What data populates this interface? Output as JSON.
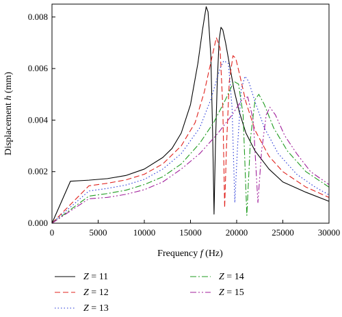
{
  "chart_data": {
    "type": "line",
    "xlabel": {
      "pre": "Frequency ",
      "var": "f",
      "post": " (Hz)"
    },
    "ylabel": {
      "pre": "Displacement ",
      "var": "h",
      "post": " (mm)"
    },
    "xlim": [
      0,
      30000
    ],
    "ylim": [
      0,
      0.0085
    ],
    "x_ticks": [
      "0",
      "5000",
      "10000",
      "15000",
      "20000",
      "25000",
      "30000"
    ],
    "y_ticks": [
      "0.000",
      "0.002",
      "0.004",
      "0.006",
      "0.008"
    ],
    "grid": false,
    "legend_position": "bottom",
    "series": [
      {
        "name": "Z = 11",
        "var": "Z",
        "rest": " = 11",
        "color": "#000000",
        "dash": "",
        "points": [
          [
            0,
            0
          ],
          [
            2000,
            0.00163
          ],
          [
            4000,
            0.00167
          ],
          [
            6000,
            0.00173
          ],
          [
            8000,
            0.00185
          ],
          [
            10000,
            0.0021
          ],
          [
            12000,
            0.00255
          ],
          [
            13000,
            0.0029
          ],
          [
            14000,
            0.0035
          ],
          [
            15000,
            0.0046
          ],
          [
            15800,
            0.0062
          ],
          [
            16300,
            0.0075
          ],
          [
            16700,
            0.0084
          ],
          [
            16900,
            0.0082
          ],
          [
            17200,
            0.0065
          ],
          [
            17400,
            0.0035
          ],
          [
            17550,
            0.00035
          ],
          [
            17700,
            0.003
          ],
          [
            17900,
            0.0055
          ],
          [
            18100,
            0.0071
          ],
          [
            18300,
            0.0076
          ],
          [
            18500,
            0.0075
          ],
          [
            18800,
            0.007
          ],
          [
            19200,
            0.0062
          ],
          [
            19700,
            0.0052
          ],
          [
            20300,
            0.0043
          ],
          [
            21000,
            0.0035
          ],
          [
            22000,
            0.0028
          ],
          [
            23500,
            0.0021
          ],
          [
            25000,
            0.0016
          ],
          [
            27500,
            0.0012
          ],
          [
            30000,
            0.00085
          ]
        ]
      },
      {
        "name": "Z = 12",
        "var": "Z",
        "rest": " = 12",
        "color": "#e0201b",
        "dash": "8,4",
        "points": [
          [
            0,
            0
          ],
          [
            4000,
            0.00145
          ],
          [
            6000,
            0.00155
          ],
          [
            8000,
            0.00168
          ],
          [
            10000,
            0.0019
          ],
          [
            12000,
            0.0023
          ],
          [
            14000,
            0.003
          ],
          [
            15500,
            0.0039
          ],
          [
            16500,
            0.0051
          ],
          [
            17300,
            0.0064
          ],
          [
            17800,
            0.0072
          ],
          [
            18200,
            0.0068
          ],
          [
            18500,
            0.0045
          ],
          [
            18700,
            0.0006
          ],
          [
            18900,
            0.003
          ],
          [
            19200,
            0.0055
          ],
          [
            19600,
            0.0065
          ],
          [
            19900,
            0.0064
          ],
          [
            20300,
            0.0058
          ],
          [
            21000,
            0.0047
          ],
          [
            22000,
            0.0036
          ],
          [
            23500,
            0.0026
          ],
          [
            25000,
            0.002
          ],
          [
            27500,
            0.0014
          ],
          [
            30000,
            0.001
          ]
        ]
      },
      {
        "name": "Z = 13",
        "var": "Z",
        "rest": " = 13",
        "color": "#1c2fd6",
        "dash": "1.5,3",
        "points": [
          [
            0,
            0
          ],
          [
            4000,
            0.00125
          ],
          [
            6000,
            0.00135
          ],
          [
            8000,
            0.00148
          ],
          [
            10000,
            0.0017
          ],
          [
            12000,
            0.0021
          ],
          [
            14000,
            0.0027
          ],
          [
            16000,
            0.0037
          ],
          [
            17200,
            0.0048
          ],
          [
            18200,
            0.006
          ],
          [
            18600,
            0.0063
          ],
          [
            19100,
            0.0062
          ],
          [
            19500,
            0.0045
          ],
          [
            19800,
            0.0008
          ],
          [
            20100,
            0.003
          ],
          [
            20500,
            0.0052
          ],
          [
            20900,
            0.0057
          ],
          [
            21300,
            0.0055
          ],
          [
            22000,
            0.0047
          ],
          [
            23000,
            0.0037
          ],
          [
            24500,
            0.0027
          ],
          [
            26500,
            0.0019
          ],
          [
            28500,
            0.0014
          ],
          [
            30000,
            0.0011
          ]
        ]
      },
      {
        "name": "Z = 14",
        "var": "Z",
        "rest": " = 14",
        "color": "#1f9b1f",
        "dash": "9,3,2,3",
        "points": [
          [
            0,
            0
          ],
          [
            4000,
            0.00105
          ],
          [
            6000,
            0.00115
          ],
          [
            8000,
            0.00128
          ],
          [
            10000,
            0.0015
          ],
          [
            12000,
            0.0018
          ],
          [
            14000,
            0.0023
          ],
          [
            16000,
            0.0031
          ],
          [
            17500,
            0.0039
          ],
          [
            18800,
            0.0048
          ],
          [
            19700,
            0.0055
          ],
          [
            20200,
            0.0054
          ],
          [
            20700,
            0.0042
          ],
          [
            21100,
            0.0003
          ],
          [
            21500,
            0.0033
          ],
          [
            22000,
            0.0048
          ],
          [
            22400,
            0.005
          ],
          [
            23000,
            0.0046
          ],
          [
            24000,
            0.0037
          ],
          [
            25500,
            0.0028
          ],
          [
            27500,
            0.002
          ],
          [
            30000,
            0.0014
          ]
        ]
      },
      {
        "name": "Z = 15",
        "var": "Z",
        "rest": " = 15",
        "color": "#a01e9a",
        "dash": "9,3,2,3,2,3",
        "points": [
          [
            0,
            0
          ],
          [
            4000,
            0.00095
          ],
          [
            6000,
            0.001
          ],
          [
            8000,
            0.00112
          ],
          [
            10000,
            0.0013
          ],
          [
            12000,
            0.0016
          ],
          [
            14000,
            0.0021
          ],
          [
            16000,
            0.0027
          ],
          [
            18000,
            0.0035
          ],
          [
            19500,
            0.0042
          ],
          [
            20600,
            0.0048
          ],
          [
            21200,
            0.0049
          ],
          [
            21800,
            0.004
          ],
          [
            22300,
            0.0008
          ],
          [
            22700,
            0.0028
          ],
          [
            23200,
            0.0042
          ],
          [
            23600,
            0.0045
          ],
          [
            24200,
            0.0042
          ],
          [
            25200,
            0.0034
          ],
          [
            26500,
            0.0027
          ],
          [
            28000,
            0.002
          ],
          [
            30000,
            0.0015
          ]
        ]
      }
    ]
  }
}
